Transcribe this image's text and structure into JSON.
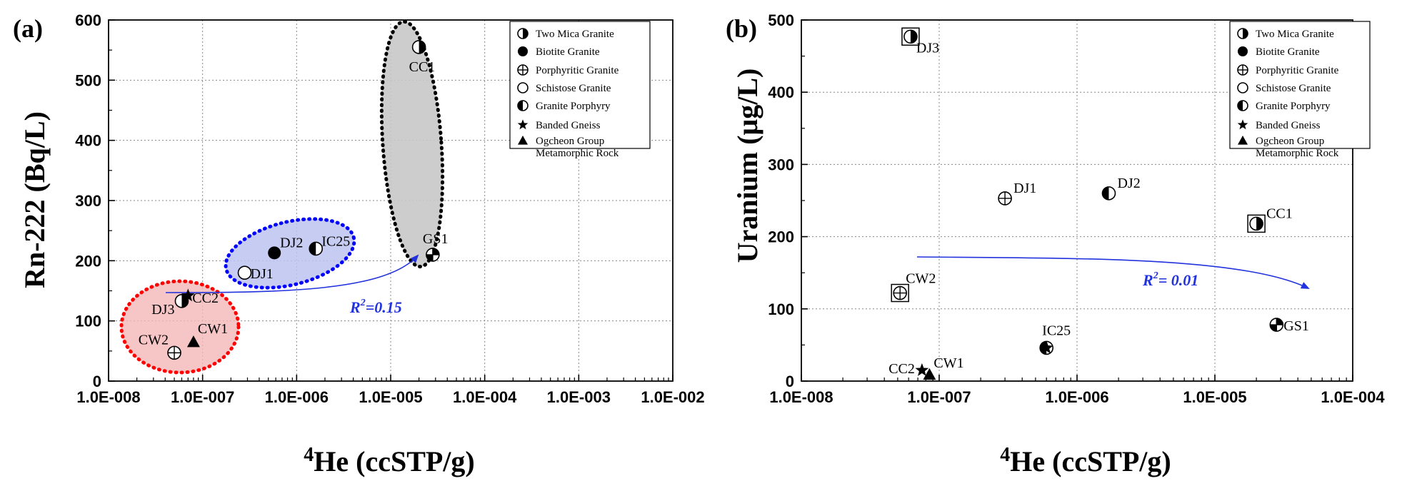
{
  "chart_data": [
    {
      "panel": "(a)",
      "type": "scatter",
      "x_scale": "log",
      "xlim": [
        1e-08,
        0.01
      ],
      "ylim": [
        0,
        600
      ],
      "xlabel_sup": "4",
      "xlabel": "He (ccSTP/g)",
      "ylabel": "Rn-222 (Bq/L)",
      "xticks": [
        "1.0E-008",
        "1.0E-007",
        "1.0E-006",
        "1.0E-005",
        "1.0E-004",
        "1.0E-003",
        "1.0E-002"
      ],
      "yticks": [
        "0",
        "100",
        "200",
        "300",
        "400",
        "500",
        "600"
      ],
      "grid": true,
      "points": [
        {
          "label": "CC1",
          "x": 2e-05,
          "y": 555,
          "rock": "two-mica"
        },
        {
          "label": "GS1",
          "x": 2.8e-05,
          "y": 210,
          "rock": "porphyritic-cross"
        },
        {
          "label": "DJ2",
          "x": 5.8e-07,
          "y": 213,
          "rock": "biotite"
        },
        {
          "label": "IC25",
          "x": 1.6e-06,
          "y": 220,
          "rock": "granite-porphyry"
        },
        {
          "label": "DJ1",
          "x": 2.8e-07,
          "y": 180,
          "rock": "schistose"
        },
        {
          "label": "DJ3",
          "x": 6e-08,
          "y": 133,
          "rock": "two-mica"
        },
        {
          "label": "CC2",
          "x": 7e-08,
          "y": 142,
          "rock": "banded-gneiss"
        },
        {
          "label": "CW1",
          "x": 8e-08,
          "y": 65,
          "rock": "ogcheon"
        },
        {
          "label": "CW2",
          "x": 5e-08,
          "y": 47,
          "rock": "porphyritic"
        }
      ],
      "annotation": {
        "text": "R²=0.15",
        "base": "R",
        "sup": "2",
        "rest": "=0.15"
      },
      "legend_placement": "top-right",
      "colors": {
        "red_group": "#ff0000",
        "blue_group": "#0000ff",
        "gray_group": "#000000",
        "arrow": "#2233dd"
      }
    },
    {
      "panel": "(b)",
      "type": "scatter",
      "x_scale": "log",
      "xlim": [
        1e-08,
        0.0001
      ],
      "ylim": [
        0,
        500
      ],
      "xlabel_sup": "4",
      "xlabel": "He (ccSTP/g)",
      "ylabel": "Uranium (μg/L)",
      "xticks": [
        "1.0E-008",
        "1.0E-007",
        "1.0E-006",
        "1.0E-005",
        "1.0E-004"
      ],
      "yticks": [
        "0",
        "100",
        "200",
        "300",
        "400",
        "500"
      ],
      "grid": true,
      "points": [
        {
          "label": "DJ3",
          "x": 6.2e-08,
          "y": 477,
          "rock": "two-mica",
          "boxed": true
        },
        {
          "label": "DJ1",
          "x": 3e-07,
          "y": 253,
          "rock": "porphyritic"
        },
        {
          "label": "DJ2",
          "x": 1.7e-06,
          "y": 260,
          "rock": "granite-porphyry"
        },
        {
          "label": "CC1",
          "x": 2e-05,
          "y": 218,
          "rock": "two-mica",
          "boxed": true
        },
        {
          "label": "CW2",
          "x": 5.2e-08,
          "y": 122,
          "rock": "porphyritic",
          "boxed": true
        },
        {
          "label": "GS1",
          "x": 2.8e-05,
          "y": 78,
          "rock": "porphyritic-cross"
        },
        {
          "label": "IC25",
          "x": 6e-07,
          "y": 46,
          "rock": "granite-porphyry-star"
        },
        {
          "label": "CC2",
          "x": 7.5e-08,
          "y": 15,
          "rock": "banded-gneiss"
        },
        {
          "label": "CW1",
          "x": 8.5e-08,
          "y": 9,
          "rock": "ogcheon"
        }
      ],
      "annotation": {
        "text": "R²= 0.01",
        "base": "R",
        "sup": "2",
        "rest": "= 0.01"
      },
      "legend_placement": "top-right"
    }
  ],
  "legend": [
    {
      "key": "two-mica",
      "label": "Two Mica Granite"
    },
    {
      "key": "biotite",
      "label": "Biotite Granite"
    },
    {
      "key": "porphyritic",
      "label": "Porphyritic Granite"
    },
    {
      "key": "schistose",
      "label": "Schistose Granite"
    },
    {
      "key": "granite-porphyry",
      "label": "Granite Porphyry"
    },
    {
      "key": "banded-gneiss",
      "label": "Banded Gneiss"
    },
    {
      "key": "ogcheon",
      "label": "Ogcheon Group",
      "label2": "Metamorphic Rock"
    }
  ]
}
